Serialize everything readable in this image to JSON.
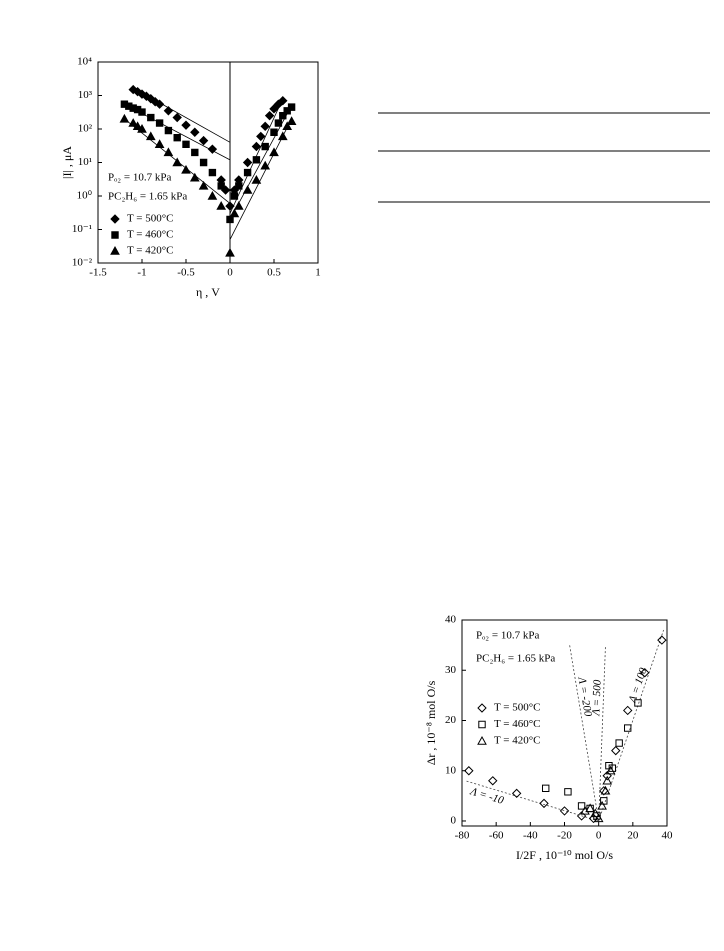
{
  "chart_data": [
    {
      "type": "scatter",
      "log_y": true,
      "xlabel": "η , V",
      "ylabel": "|I| , μA",
      "xlim": [
        -1.5,
        1
      ],
      "xticks": [
        -1.5,
        -1,
        -0.5,
        0,
        0.5,
        1
      ],
      "ylim": [
        0.01,
        10000
      ],
      "yticks": [
        {
          "value": 0.01,
          "label": "10⁻²"
        },
        {
          "value": 0.1,
          "label": "10⁻¹"
        },
        {
          "value": 1,
          "label": "10⁰"
        },
        {
          "value": 10,
          "label": "10¹"
        },
        {
          "value": 100,
          "label": "10²"
        },
        {
          "value": 1000,
          "label": "10³"
        },
        {
          "value": 10000,
          "label": "10⁴"
        }
      ],
      "annotations": [
        "Pₒ₂ = 10.7 kPa",
        "PC₂H₆ = 1.65 kPa"
      ],
      "series": [
        {
          "name": "T = 500°C",
          "color": "#000000",
          "marker": "diamond",
          "filled": true,
          "x": [
            -1.1,
            -1.05,
            -1.0,
            -0.95,
            -0.9,
            -0.85,
            -0.8,
            -0.7,
            -0.6,
            -0.5,
            -0.4,
            -0.3,
            -0.2,
            -0.1,
            -0.05,
            0,
            0.05,
            0.1,
            0.2,
            0.3,
            0.35,
            0.4,
            0.45,
            0.5,
            0.55,
            0.6
          ],
          "values": [
            1500,
            1300,
            1100,
            950,
            800,
            650,
            550,
            350,
            220,
            130,
            80,
            45,
            25,
            3,
            1.5,
            0.5,
            1.5,
            3,
            10,
            30,
            60,
            120,
            250,
            400,
            550,
            700
          ]
        },
        {
          "name": "T = 460°C",
          "color": "#000000",
          "marker": "square",
          "filled": true,
          "x": [
            -1.2,
            -1.15,
            -1.1,
            -1.05,
            -1.0,
            -0.9,
            -0.8,
            -0.7,
            -0.6,
            -0.5,
            -0.4,
            -0.3,
            -0.2,
            -0.1,
            0,
            0.05,
            0.1,
            0.2,
            0.3,
            0.4,
            0.5,
            0.55,
            0.6,
            0.65,
            0.7
          ],
          "values": [
            550,
            480,
            420,
            380,
            320,
            220,
            150,
            90,
            55,
            35,
            20,
            10,
            5,
            2,
            0.2,
            1,
            2,
            5,
            12,
            30,
            80,
            150,
            250,
            350,
            450
          ]
        },
        {
          "name": "T = 420°C",
          "color": "#000000",
          "marker": "triangle",
          "filled": true,
          "x": [
            -1.2,
            -1.1,
            -1.05,
            -1.0,
            -0.9,
            -0.8,
            -0.7,
            -0.6,
            -0.5,
            -0.4,
            -0.3,
            -0.2,
            -0.1,
            0,
            0.05,
            0.1,
            0.2,
            0.3,
            0.4,
            0.5,
            0.6,
            0.65,
            0.7
          ],
          "values": [
            200,
            150,
            120,
            100,
            60,
            35,
            20,
            10,
            6,
            3.5,
            2,
            1,
            0.5,
            0.02,
            0.3,
            0.5,
            1.5,
            3,
            8,
            20,
            60,
            120,
            170
          ]
        }
      ],
      "fits": [
        {
          "x": [
            -1,
            0
          ],
          "y": [
            1200,
            40
          ]
        },
        {
          "x": [
            0,
            0.6
          ],
          "y": [
            0.3,
            800
          ]
        },
        {
          "x": [
            -1.2,
            0
          ],
          "y": [
            550,
            12
          ]
        },
        {
          "x": [
            0,
            0.7
          ],
          "y": [
            0.2,
            500
          ]
        },
        {
          "x": [
            -1.2,
            0
          ],
          "y": [
            200,
            0.6
          ]
        },
        {
          "x": [
            0,
            0.7
          ],
          "y": [
            0.05,
            200
          ]
        }
      ],
      "vline": 0
    },
    {
      "type": "scatter",
      "log_y": false,
      "xlabel": "I/2F , 10⁻¹⁰ mol O/s",
      "ylabel": "Δr , 10⁻⁸ mol O/s",
      "xlim": [
        -80,
        40
      ],
      "xticks": [
        -80,
        -60,
        -40,
        -20,
        0,
        20,
        40
      ],
      "ylim": [
        -1,
        40
      ],
      "yticks": [
        0,
        10,
        20,
        30,
        40
      ],
      "annotations": [
        "Pₒ₂ = 10.7 kPa",
        "PC₂H₆ = 1.65 kPa"
      ],
      "series": [
        {
          "name": "T = 500°C",
          "color": "#000000",
          "marker": "diamond",
          "filled": false,
          "x": [
            -76,
            -62,
            -48,
            -32,
            -20,
            -10,
            -3,
            3,
            5,
            10,
            17,
            27,
            37
          ],
          "values": [
            10,
            8,
            5.5,
            3.5,
            2,
            1,
            0.5,
            6,
            9,
            14,
            22,
            29.5,
            36
          ]
        },
        {
          "name": "T = 460°C",
          "color": "#000000",
          "marker": "square",
          "filled": false,
          "x": [
            -31,
            -18,
            -10,
            -5,
            -1,
            3,
            6,
            8,
            12,
            17,
            23
          ],
          "values": [
            6.5,
            5.8,
            3,
            2.5,
            1,
            4,
            11,
            10.5,
            15.5,
            18.5,
            23.5
          ]
        },
        {
          "name": "T = 420°C",
          "color": "#000000",
          "marker": "triangle",
          "filled": false,
          "x": [
            -8,
            -5,
            -2,
            0,
            2,
            4,
            5,
            7
          ],
          "values": [
            2,
            2.5,
            1.5,
            0.5,
            3,
            6,
            8,
            10
          ]
        }
      ],
      "lines": [
        {
          "label": "Λ = 100",
          "x": [
            0,
            38
          ],
          "y": [
            0,
            38
          ]
        },
        {
          "label": "Λ = 500",
          "x": [
            0,
            4
          ],
          "y": [
            0,
            35
          ]
        },
        {
          "label": "Λ = -200",
          "x": [
            0,
            -17
          ],
          "y": [
            0,
            35
          ]
        },
        {
          "label": "Λ = -10",
          "x": [
            0,
            -78
          ],
          "y": [
            0,
            8
          ]
        }
      ]
    }
  ]
}
